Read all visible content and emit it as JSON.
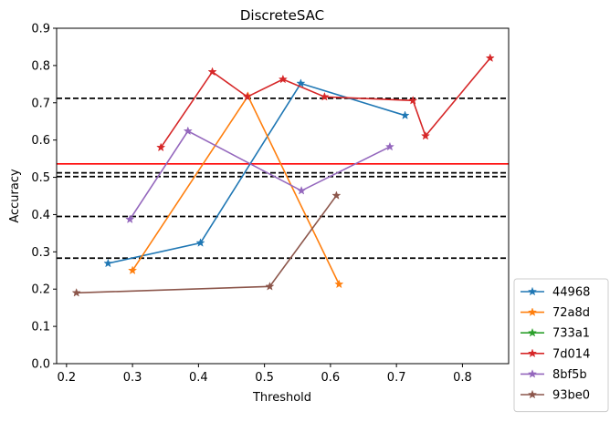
{
  "chart_data": {
    "type": "line",
    "title": "DiscreteSAC",
    "xlabel": "Threshold",
    "ylabel": "Accuracy",
    "xlim": [
      0.185,
      0.87
    ],
    "ylim": [
      0.0,
      0.9
    ],
    "xticks": [
      "0.2",
      "0.3",
      "0.4",
      "0.5",
      "0.6",
      "0.7",
      "0.8"
    ],
    "yticks": [
      "0.0",
      "0.1",
      "0.2",
      "0.3",
      "0.4",
      "0.5",
      "0.6",
      "0.7",
      "0.8",
      "0.9"
    ],
    "grid": false,
    "legend_placement": "outside-lower-right",
    "series": [
      {
        "name": "44968",
        "color": "#1f77b4",
        "x": [
          0.263,
          0.403,
          0.555,
          0.713
        ],
        "y": [
          0.269,
          0.324,
          0.752,
          0.666
        ]
      },
      {
        "name": "72a8d",
        "color": "#ff7f0e",
        "x": [
          0.3,
          0.475,
          0.613
        ],
        "y": [
          0.25,
          0.718,
          0.213
        ]
      },
      {
        "name": "733a1",
        "color": "#2ca02c",
        "x": [],
        "y": []
      },
      {
        "name": "7d014",
        "color": "#d62728",
        "x": [
          0.343,
          0.421,
          0.474,
          0.528,
          0.591,
          0.725,
          0.744,
          0.842
        ],
        "y": [
          0.58,
          0.783,
          0.716,
          0.763,
          0.716,
          0.706,
          0.611,
          0.82
        ]
      },
      {
        "name": "8bf5b",
        "color": "#9467bd",
        "x": [
          0.296,
          0.384,
          0.556,
          0.69
        ],
        "y": [
          0.387,
          0.624,
          0.464,
          0.582
        ]
      },
      {
        "name": "93be0",
        "color": "#8c564b",
        "x": [
          0.215,
          0.508,
          0.609
        ],
        "y": [
          0.19,
          0.207,
          0.451
        ]
      }
    ],
    "hlines": [
      {
        "y": 0.712,
        "color": "#000000",
        "style": "dashed"
      },
      {
        "y": 0.536,
        "color": "#ff0000",
        "style": "solid"
      },
      {
        "y": 0.512,
        "color": "#000000",
        "style": "dashed"
      },
      {
        "y": 0.502,
        "color": "#000000",
        "style": "dashed"
      },
      {
        "y": 0.395,
        "color": "#000000",
        "style": "dashed"
      },
      {
        "y": 0.283,
        "color": "#000000",
        "style": "dashed"
      }
    ]
  }
}
